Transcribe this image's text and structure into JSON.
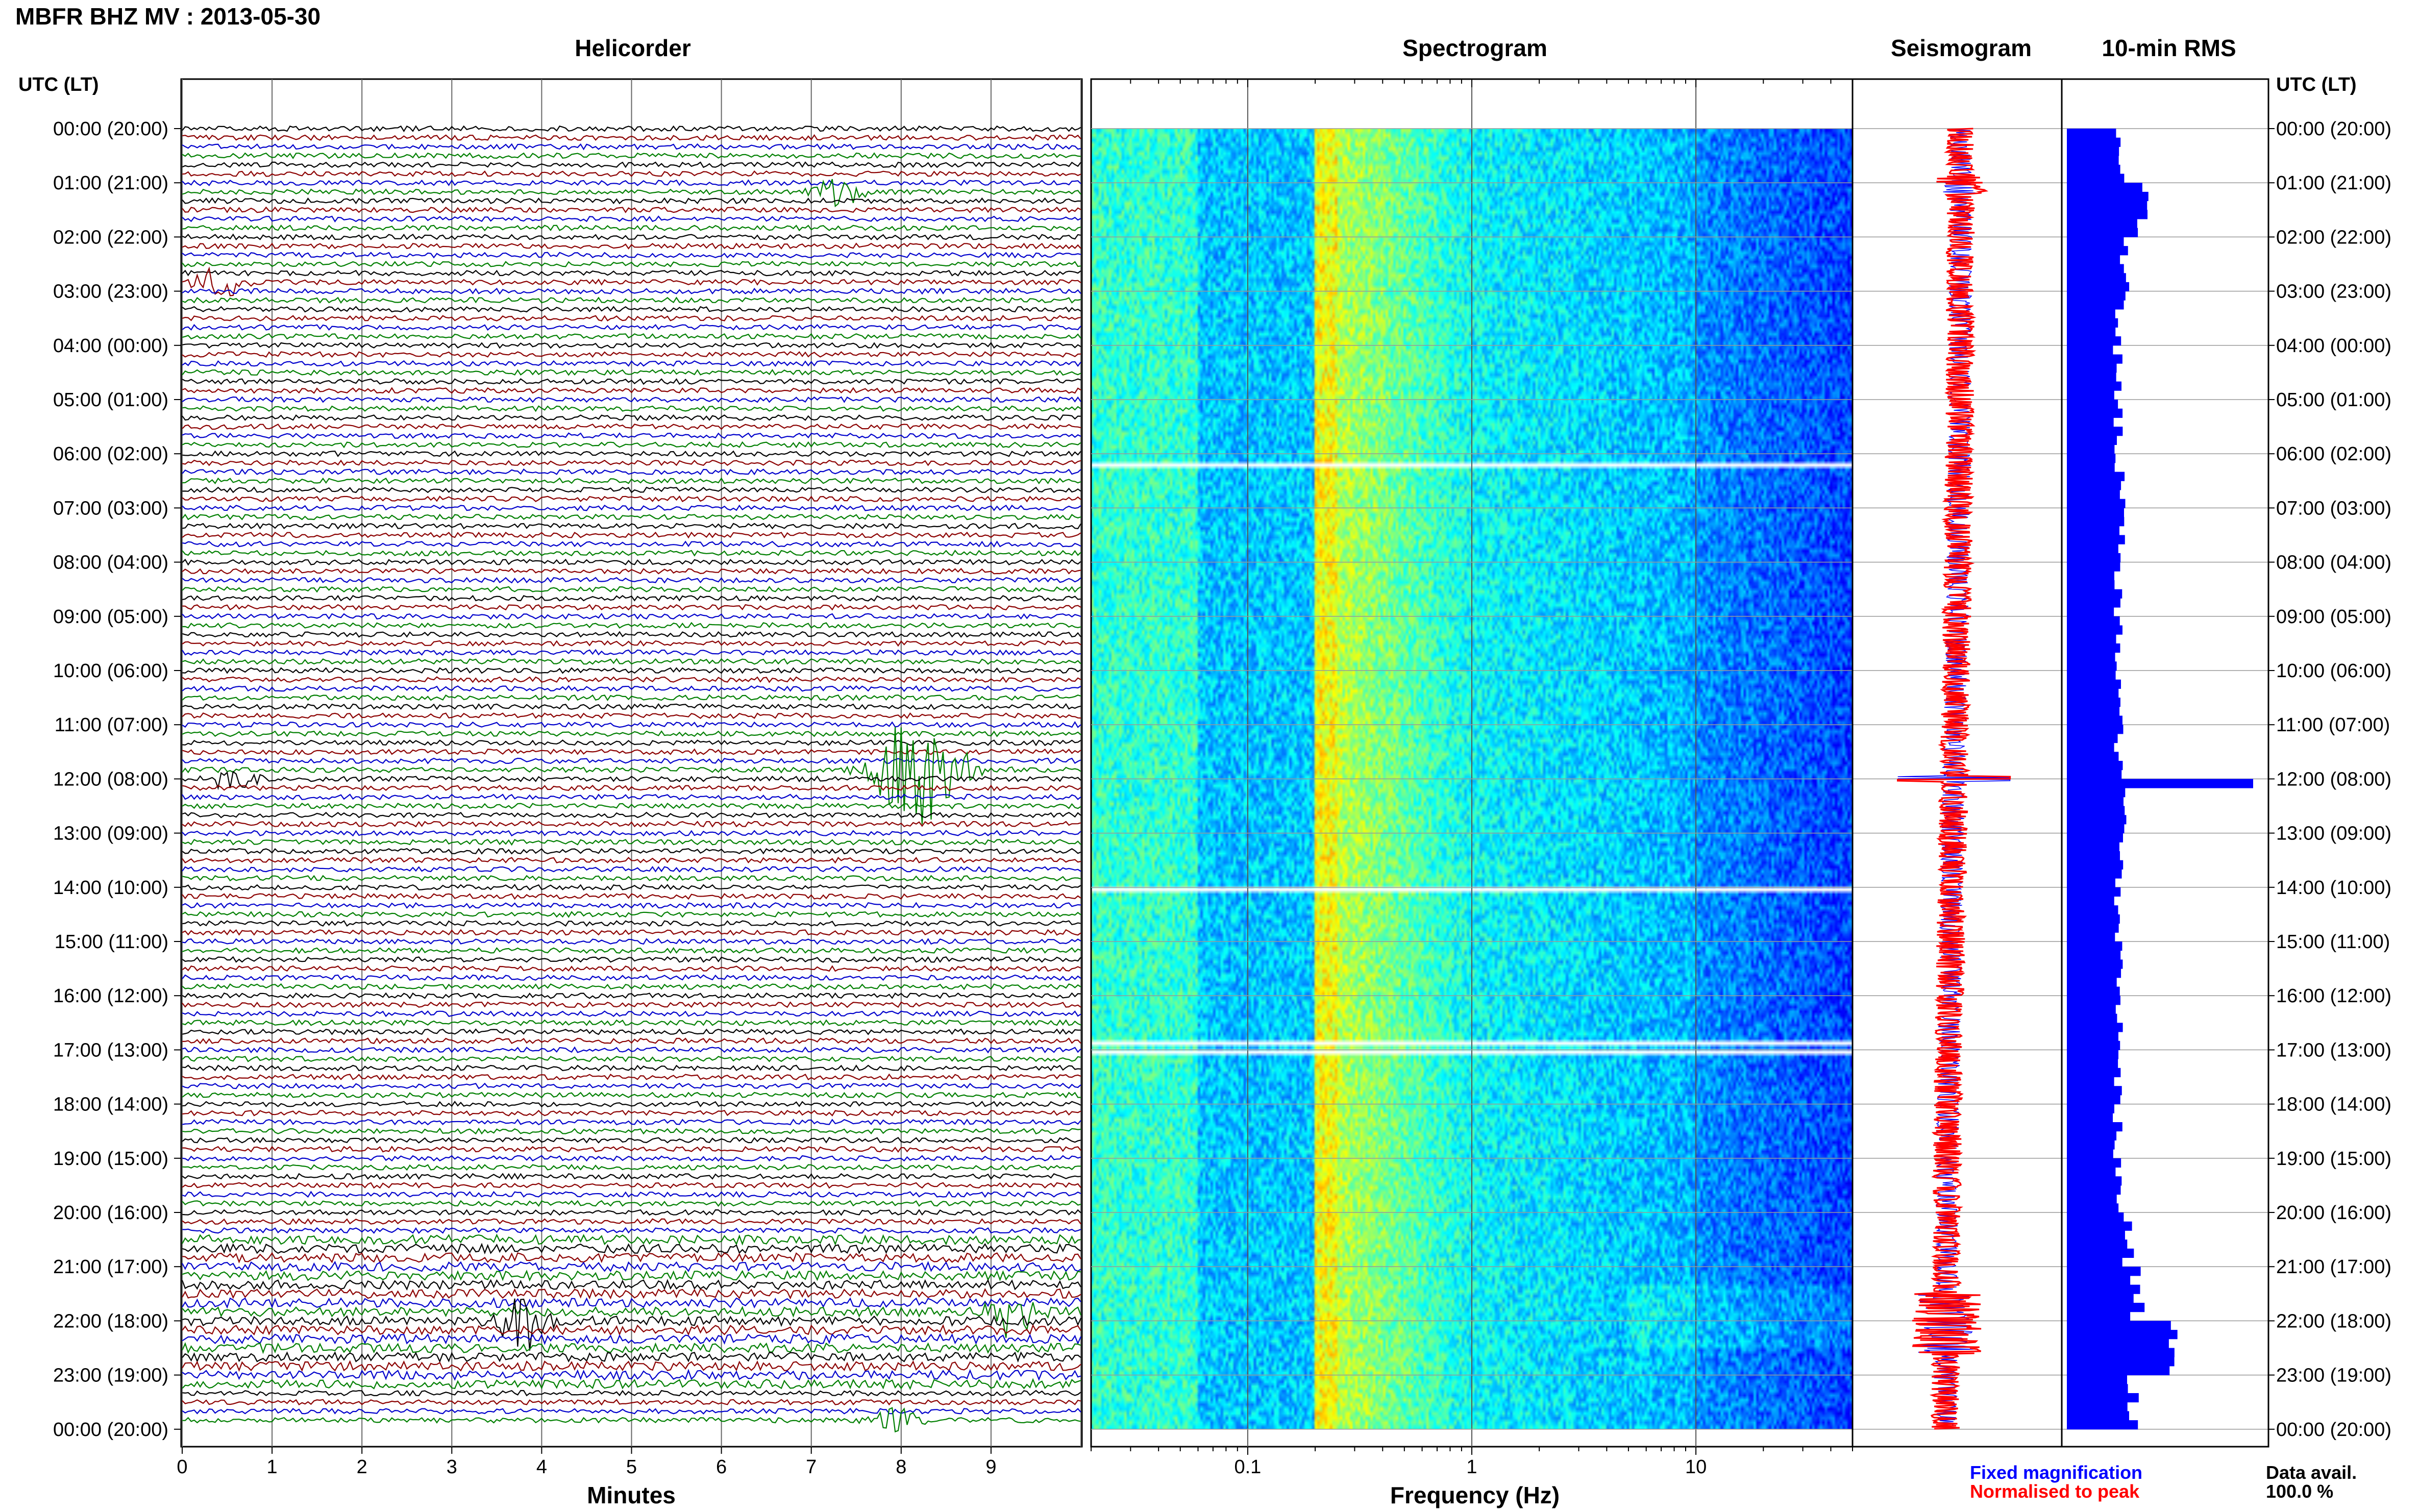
{
  "header": {
    "title": "MBFR BHZ MV : 2013-05-30",
    "time_label_left": "UTC (LT)",
    "time_label_right": "UTC (LT)"
  },
  "panels": {
    "helicorder": "Helicorder",
    "spectrogram": "Spectrogram",
    "seismogram": "Seismogram",
    "rms": "10-min RMS"
  },
  "axes": {
    "helicorder_xlabel": "Minutes",
    "spectrogram_xlabel": "Frequency (Hz)",
    "minute_ticks": [
      "0",
      "1",
      "2",
      "3",
      "4",
      "5",
      "6",
      "7",
      "8",
      "9"
    ],
    "freq_ticks": [
      "0.1",
      "1",
      "10"
    ]
  },
  "time_labels": [
    "00:00 (20:00)",
    "01:00 (21:00)",
    "02:00 (22:00)",
    "03:00 (23:00)",
    "04:00 (00:00)",
    "05:00 (01:00)",
    "06:00 (02:00)",
    "07:00 (03:00)",
    "08:00 (04:00)",
    "09:00 (05:00)",
    "10:00 (06:00)",
    "11:00 (07:00)",
    "12:00 (08:00)",
    "13:00 (09:00)",
    "14:00 (10:00)",
    "15:00 (11:00)",
    "16:00 (12:00)",
    "17:00 (13:00)",
    "18:00 (14:00)",
    "19:00 (15:00)",
    "20:00 (16:00)",
    "21:00 (17:00)",
    "22:00 (18:00)",
    "23:00 (19:00)",
    "00:00 (20:00)"
  ],
  "legend": {
    "fixed": "Fixed magnification",
    "normalised": "Normalised to peak",
    "fixed_color": "#0000ff",
    "normalised_color": "#ff0000"
  },
  "data_avail": {
    "label": "Data avail.",
    "value": "100.0 %"
  },
  "colors": {
    "trace_cycle": [
      "#000000",
      "#8b0000",
      "#0000cc",
      "#007f00"
    ],
    "rms_bar": "#0000ff"
  },
  "chart_data": [
    {
      "type": "line",
      "title": "Helicorder",
      "xlabel": "Minutes",
      "xlim": [
        0,
        10
      ],
      "rows": 144,
      "row_minutes": 10,
      "events": [
        {
          "time": "01:10",
          "minute": 7.3,
          "amp": "medium"
        },
        {
          "time": "02:50",
          "minute": 0.4,
          "amp": "medium"
        },
        {
          "time": "11:50",
          "minute": 8.2,
          "amp": "large"
        },
        {
          "time": "12:00",
          "minute": 0.6,
          "amp": "medium"
        },
        {
          "time": "21:50",
          "minute": 9.2,
          "amp": "medium"
        },
        {
          "time": "22:00",
          "minute": 3.8,
          "amp": "medium"
        },
        {
          "time": "23:50",
          "minute": 8.0,
          "amp": "medium"
        }
      ]
    },
    {
      "type": "heatmap",
      "title": "Spectrogram",
      "xlabel": "Frequency (Hz)",
      "xscale": "log",
      "xlim": [
        0.02,
        50
      ],
      "gaps": [
        "06:10",
        "14:00",
        "16:50",
        "17:00"
      ]
    },
    {
      "type": "line",
      "title": "Seismogram",
      "series": [
        {
          "name": "Fixed magnification",
          "color": "#0000ff"
        },
        {
          "name": "Normalised to peak",
          "color": "#ff0000"
        }
      ]
    },
    {
      "type": "bar",
      "title": "10-min RMS",
      "orientation": "horizontal",
      "hours": [
        0,
        1,
        2,
        3,
        4,
        5,
        6,
        7,
        8,
        9,
        10,
        11,
        12,
        13,
        14,
        15,
        16,
        17,
        18,
        19,
        20,
        21,
        22,
        23
      ],
      "values": [
        0.3,
        0.42,
        0.33,
        0.3,
        0.29,
        0.29,
        0.3,
        0.3,
        0.29,
        0.29,
        0.29,
        0.29,
        1.0,
        0.3,
        0.29,
        0.3,
        0.29,
        0.29,
        0.29,
        0.3,
        0.35,
        0.4,
        0.63,
        0.38
      ]
    }
  ]
}
